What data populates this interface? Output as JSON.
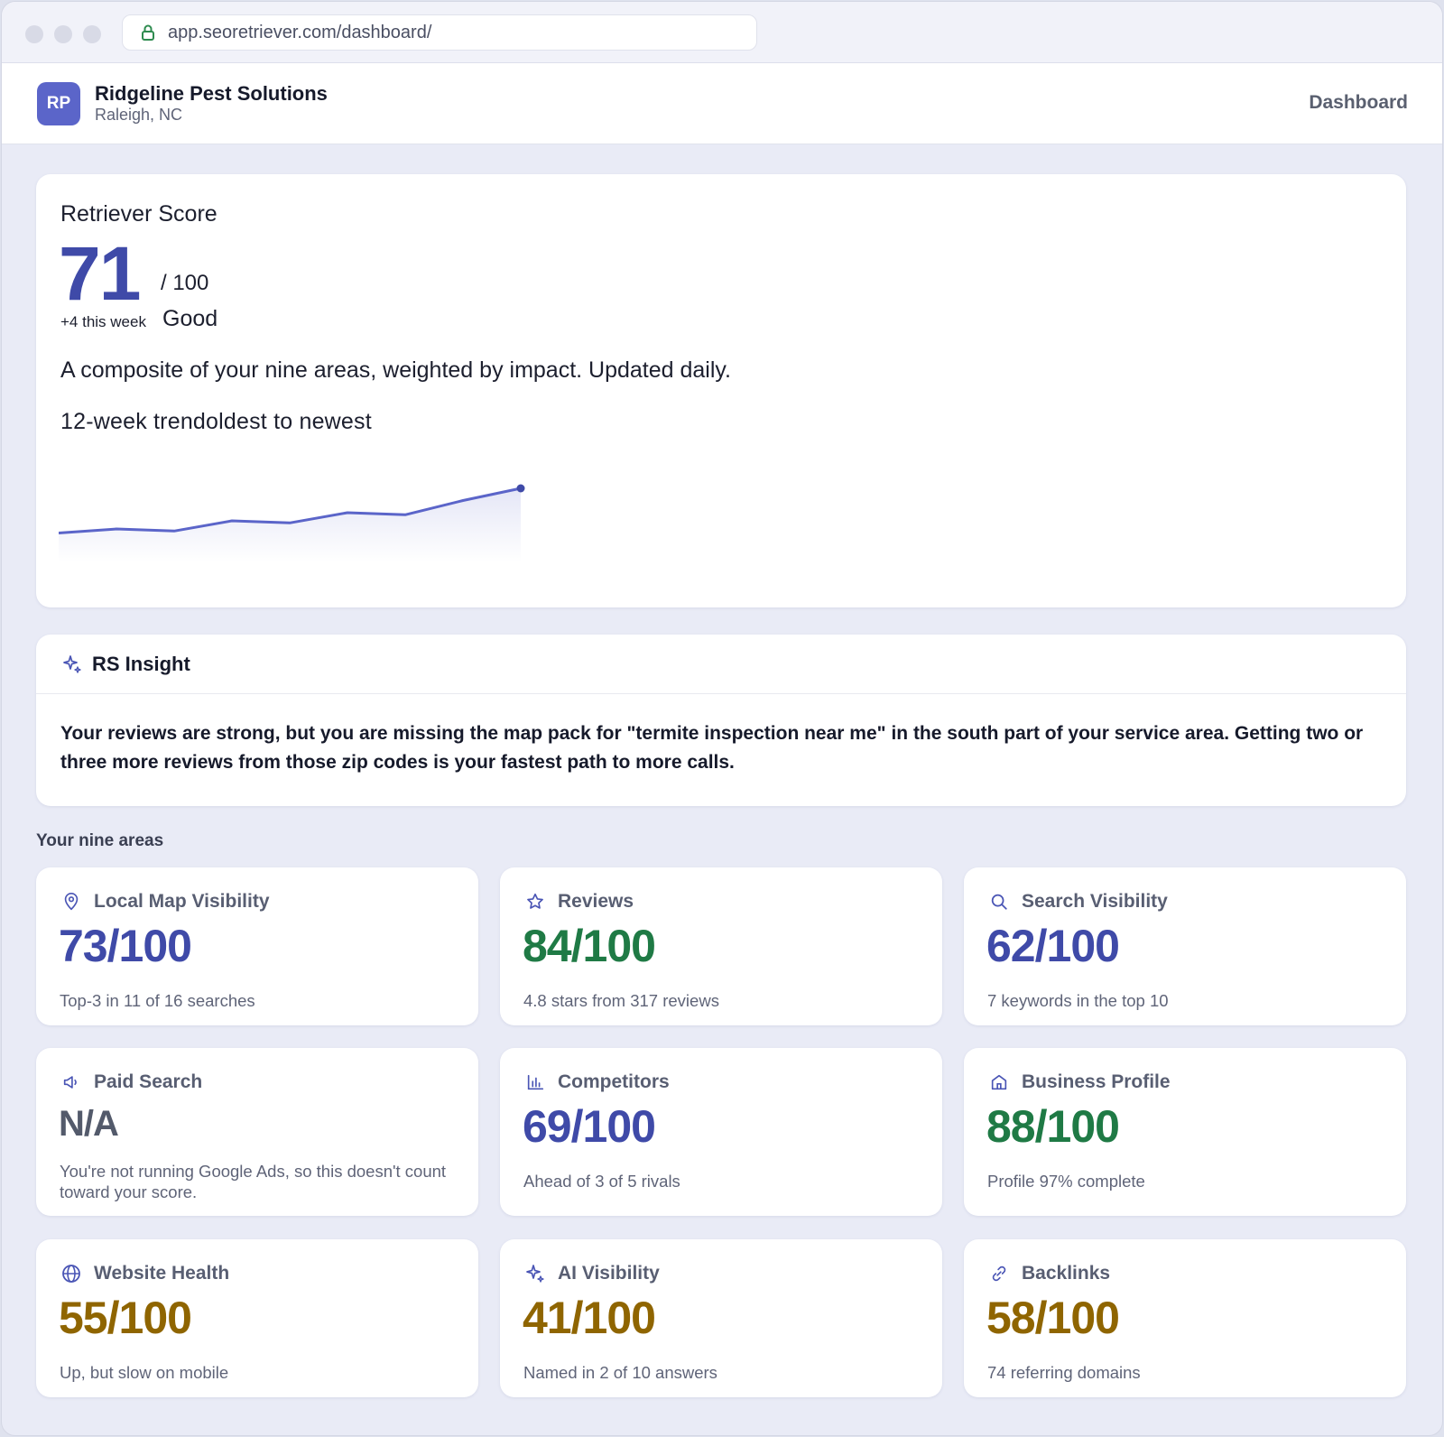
{
  "browser": {
    "url": "app.seoretriever.com/dashboard/"
  },
  "header": {
    "avatar_initials": "RP",
    "business_name": "Ridgeline Pest Solutions",
    "location": "Raleigh, NC",
    "nav_label": "Dashboard"
  },
  "score": {
    "title": "Retriever Score",
    "value": "71",
    "max_label": "/ 100",
    "delta": "+4 this week",
    "rating": "Good",
    "description": "A composite of your nine areas, weighted by impact. Updated daily.",
    "trend_label": "12-week trendoldest to newest"
  },
  "chart_data": {
    "type": "area",
    "series": [
      {
        "values": [
          60,
          61,
          60.5,
          63,
          62.5,
          65,
          64.5,
          68,
          71
        ]
      }
    ],
    "ylim": [
      55,
      75
    ],
    "color": "#5b65c9"
  },
  "insight": {
    "title": "RS Insight",
    "body": "Your reviews are strong, but you are missing the map pack for \"termite inspection near me\" in the south part of your service area. Getting two or three more reviews from those zip codes is your fastest path to more calls."
  },
  "areas_label": "Your nine areas",
  "areas": [
    {
      "icon": "map-pin-icon",
      "name": "Local Map Visibility",
      "score": "73/100",
      "sub": "Top-3 in 11 of 16 searches",
      "tone": "blue"
    },
    {
      "icon": "star-icon",
      "name": "Reviews",
      "score": "84/100",
      "sub": "4.8 stars from 317 reviews",
      "tone": "green"
    },
    {
      "icon": "search-icon",
      "name": "Search Visibility",
      "score": "62/100",
      "sub": "7 keywords in the top 10",
      "tone": "blue"
    },
    {
      "icon": "megaphone-icon",
      "name": "Paid Search",
      "score": "N/A",
      "sub": "You're not running Google Ads, so this doesn't count toward your score.",
      "tone": "gray"
    },
    {
      "icon": "bar-chart-icon",
      "name": "Competitors",
      "score": "69/100",
      "sub": "Ahead of 3 of 5 rivals",
      "tone": "blue"
    },
    {
      "icon": "storefront-icon",
      "name": "Business Profile",
      "score": "88/100",
      "sub": "Profile 97% complete",
      "tone": "green"
    },
    {
      "icon": "globe-icon",
      "name": "Website Health",
      "score": "55/100",
      "sub": "Up, but slow on mobile",
      "tone": "amber"
    },
    {
      "icon": "sparkle-icon",
      "name": "AI Visibility",
      "score": "41/100",
      "sub": "Named in 2 of 10 answers",
      "tone": "amber"
    },
    {
      "icon": "link-icon",
      "name": "Backlinks",
      "score": "58/100",
      "sub": "74 referring domains",
      "tone": "amber"
    }
  ]
}
